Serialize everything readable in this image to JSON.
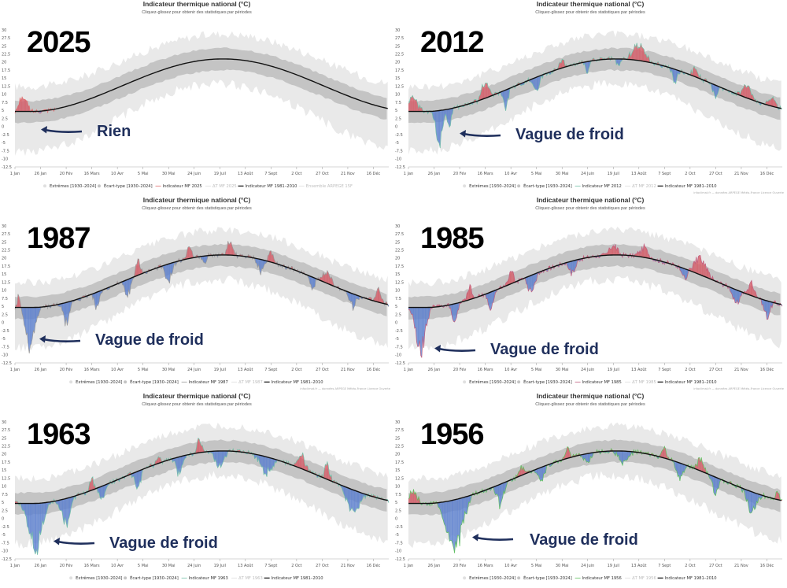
{
  "chart_data": [
    {
      "type": "area",
      "year_label": "2025",
      "title": "Indicateur thermique national (°C)",
      "subtitle": "Cliquez-glissez pour obtenir des statistiques par périodes",
      "annotation": "Rien",
      "ylim": [
        -12.5,
        30
      ],
      "y_ticks": [
        "30",
        "27.5",
        "25",
        "22.5",
        "20",
        "17.5",
        "15",
        "12.5",
        "10",
        "7.5",
        "5",
        "2.5",
        "0",
        "-2.5",
        "-5",
        "-7.5",
        "-10",
        "-12.5"
      ],
      "x_ticks": [
        "1 Jan",
        "26 Jan",
        "20 Fév",
        "16 Mars",
        "10 Avr",
        "5 Mai",
        "30 Mai",
        "24 Juin",
        "19 Juil",
        "13 Août",
        "7 Sept",
        "2 Oct",
        "27 Oct",
        "21 Nov",
        "16 Déc"
      ],
      "legend": [
        "Extrêmes [1930–2024]",
        "Écart-type [1930–2024]",
        "Indicateur MF 2025",
        "ΔT MF 2025",
        "Indicateur MF 1981–2010",
        "Ensemble ARPEGE 15F"
      ],
      "credit": "",
      "year_line_color": "#e07070",
      "cold_spells": [],
      "warm_spells": [
        [
          8,
          12,
          5
        ]
      ],
      "end_day": 40
    },
    {
      "type": "area",
      "year_label": "2012",
      "title": "Indicateur thermique national (°C)",
      "subtitle": "Cliquez-glissez pour obtenir des statistiques par périodes",
      "annotation": "Vague de froid",
      "ylim": [
        -12.5,
        30
      ],
      "y_ticks": [
        "30",
        "27.5",
        "25",
        "22.5",
        "20",
        "17.5",
        "15",
        "12.5",
        "10",
        "7.5",
        "5",
        "2.5",
        "0",
        "-2.5",
        "-5",
        "-7.5",
        "-10",
        "-12.5"
      ],
      "x_ticks": [
        "1 Jan",
        "26 Jan",
        "20 Fév",
        "16 Mars",
        "10 Avr",
        "5 Mai",
        "30 Mai",
        "24 Juin",
        "19 Juil",
        "13 Août",
        "7 Sept",
        "2 Oct",
        "27 Oct",
        "21 Nov",
        "16 Déc"
      ],
      "legend": [
        "Extrêmes [1930–2024]",
        "Écart-type [1930–2024]",
        "Indicateur MF 2012",
        "ΔT MF 2012",
        "Indicateur MF 1981–2010"
      ],
      "credit": "infoclimat.fr — données ARPEGE Météo-France Licence Ouverte",
      "year_line_color": "#74c0a8",
      "cold_spells": [
        [
          30,
          12,
          -9.5
        ],
        [
          40,
          6,
          -6
        ],
        [
          95,
          8,
          -5
        ],
        [
          125,
          10,
          -4
        ],
        [
          175,
          6,
          -3
        ],
        [
          205,
          6,
          -3
        ],
        [
          260,
          8,
          -4
        ],
        [
          300,
          8,
          -4
        ]
      ],
      "warm_spells": [
        [
          5,
          15,
          4.5
        ],
        [
          75,
          12,
          5
        ],
        [
          150,
          8,
          3
        ],
        [
          225,
          20,
          5
        ],
        [
          280,
          10,
          3
        ],
        [
          330,
          15,
          4
        ],
        [
          355,
          10,
          3
        ]
      ],
      "end_day": 366
    },
    {
      "type": "area",
      "year_label": "1987",
      "title": "Indicateur thermique national (°C)",
      "subtitle": "Cliquez-glissez pour obtenir des statistiques par périodes",
      "annotation": "Vague de froid",
      "ylim": [
        -12.5,
        30
      ],
      "y_ticks": [
        "30",
        "27.5",
        "25",
        "22.5",
        "20",
        "17.5",
        "15",
        "12.5",
        "10",
        "7.5",
        "5",
        "2.5",
        "0",
        "-2.5",
        "-5",
        "-7.5",
        "-10",
        "-12.5"
      ],
      "x_ticks": [
        "1 Jan",
        "26 Jan",
        "20 Fév",
        "16 Mars",
        "10 Avr",
        "5 Mai",
        "30 Mai",
        "24 Juin",
        "19 Juil",
        "13 Août",
        "7 Sept",
        "2 Oct",
        "27 Oct",
        "21 Nov",
        "16 Déc"
      ],
      "legend": [
        "Extrêmes [1930–2024]",
        "Écart-type [1930–2024]",
        "Indicateur MF 1987",
        "ΔT MF 1987",
        "Indicateur MF 1981–2010"
      ],
      "credit": "infoclimat.fr — données ARPEGE Météo-France Licence Ouverte",
      "year_line_color": "#999999",
      "cold_spells": [
        [
          15,
          16,
          -13
        ],
        [
          50,
          10,
          -7
        ],
        [
          80,
          8,
          -5
        ],
        [
          110,
          10,
          -5
        ],
        [
          150,
          12,
          -5
        ],
        [
          185,
          6,
          -3
        ],
        [
          240,
          10,
          -4
        ],
        [
          290,
          8,
          -4
        ],
        [
          330,
          10,
          -4
        ]
      ],
      "warm_spells": [
        [
          4,
          6,
          4
        ],
        [
          120,
          8,
          4
        ],
        [
          170,
          8,
          4
        ],
        [
          210,
          10,
          4
        ],
        [
          250,
          10,
          3
        ],
        [
          305,
          12,
          4
        ],
        [
          355,
          8,
          4
        ]
      ],
      "end_day": 366
    },
    {
      "type": "area",
      "year_label": "1985",
      "title": "Indicateur thermique national (°C)",
      "subtitle": "Cliquez-glissez pour obtenir des statistiques par périodes",
      "annotation": "Vague de froid",
      "ylim": [
        -12.5,
        30
      ],
      "y_ticks": [
        "30",
        "27.5",
        "25",
        "22.5",
        "20",
        "17.5",
        "15",
        "12.5",
        "10",
        "7.5",
        "5",
        "2.5",
        "0",
        "-2.5",
        "-5",
        "-7.5",
        "-10",
        "-12.5"
      ],
      "x_ticks": [
        "1 Jan",
        "26 Jan",
        "20 Fév",
        "16 Mars",
        "10 Avr",
        "5 Mai",
        "30 Mai",
        "24 Juin",
        "19 Juil",
        "13 Août",
        "7 Sept",
        "2 Oct",
        "27 Oct",
        "21 Nov",
        "16 Déc"
      ],
      "legend": [
        "Extrêmes [1930–2024]",
        "Écart-type [1930–2024]",
        "Indicateur MF 1985",
        "ΔT MF 1985",
        "Indicateur MF 1981–2010"
      ],
      "credit": "infoclimat.fr — données ARPEGE Météo-France Licence Ouverte",
      "year_line_color": "#c06080",
      "cold_spells": [
        [
          12,
          16,
          -13.5
        ],
        [
          45,
          8,
          -6
        ],
        [
          80,
          10,
          -5
        ],
        [
          120,
          12,
          -5
        ],
        [
          160,
          10,
          -4
        ],
        [
          270,
          8,
          -3
        ],
        [
          320,
          10,
          -5
        ],
        [
          350,
          10,
          -5
        ]
      ],
      "warm_spells": [
        [
          60,
          8,
          4
        ],
        [
          100,
          8,
          4
        ],
        [
          200,
          12,
          3
        ],
        [
          230,
          15,
          3
        ],
        [
          285,
          20,
          5
        ],
        [
          335,
          10,
          4
        ]
      ],
      "end_day": 366
    },
    {
      "type": "area",
      "year_label": "1963",
      "title": "Indicateur thermique national (°C)",
      "subtitle": "Cliquez-glissez pour obtenir des statistiques par périodes",
      "annotation": "Vague de froid",
      "ylim": [
        -12.5,
        30
      ],
      "y_ticks": [
        "30",
        "27.5",
        "25",
        "22.5",
        "20",
        "17.5",
        "15",
        "12.5",
        "10",
        "7.5",
        "5",
        "2.5",
        "0",
        "-2.5",
        "-5",
        "-7.5",
        "-10",
        "-12.5"
      ],
      "x_ticks": [
        "1 Jan",
        "26 Jan",
        "20 Fév",
        "16 Mars",
        "10 Avr",
        "5 Mai",
        "30 Mai",
        "24 Juin",
        "19 Juil",
        "13 Août",
        "7 Sept",
        "2 Oct",
        "27 Oct",
        "21 Nov",
        "16 Déc"
      ],
      "legend": [
        "Extrêmes [1930–2024]",
        "Écart-type [1930–2024]",
        "Indicateur MF 1963",
        "ΔT MF 1963",
        "Indicateur MF 1981–2010"
      ],
      "credit": "",
      "year_line_color": "#74c0a8",
      "cold_spells": [
        [
          20,
          22,
          -14
        ],
        [
          50,
          14,
          -8
        ],
        [
          85,
          8,
          -5
        ],
        [
          120,
          10,
          -5
        ],
        [
          160,
          10,
          -5
        ],
        [
          200,
          15,
          -5
        ],
        [
          245,
          20,
          -5
        ],
        [
          330,
          20,
          -8
        ]
      ],
      "warm_spells": [
        [
          75,
          6,
          4
        ],
        [
          140,
          6,
          3
        ],
        [
          180,
          8,
          4
        ],
        [
          280,
          12,
          5
        ],
        [
          305,
          8,
          5
        ]
      ],
      "end_day": 366
    },
    {
      "type": "area",
      "year_label": "1956",
      "title": "Indicateur thermique national (°C)",
      "subtitle": "Cliquez-glissez pour obtenir des statistiques par périodes",
      "annotation": "Vague de froid",
      "ylim": [
        -12.5,
        30
      ],
      "y_ticks": [
        "30",
        "27.5",
        "25",
        "22.5",
        "20",
        "17.5",
        "15",
        "12.5",
        "10",
        "7.5",
        "5",
        "2.5",
        "0",
        "-2.5",
        "-5",
        "-7.5",
        "-10",
        "-12.5"
      ],
      "x_ticks": [
        "1 Jan",
        "26 Jan",
        "20 Fév",
        "16 Mars",
        "10 Avr",
        "5 Mai",
        "30 Mai",
        "24 Juin",
        "19 Juil",
        "13 Août",
        "7 Sept",
        "2 Oct",
        "27 Oct",
        "21 Nov",
        "16 Déc"
      ],
      "legend": [
        "Extrêmes [1930–2024]",
        "Écart-type [1930–2024]",
        "Indicateur MF 1956",
        "ΔT MF 1956",
        "Indicateur MF 1981–2010"
      ],
      "credit": "",
      "year_line_color": "#60c060",
      "cold_spells": [
        [
          45,
          26,
          -16
        ],
        [
          90,
          12,
          -6
        ],
        [
          130,
          10,
          -4
        ],
        [
          175,
          10,
          -3
        ],
        [
          210,
          15,
          -4
        ],
        [
          265,
          12,
          -5
        ],
        [
          300,
          10,
          -5
        ],
        [
          335,
          15,
          -6
        ]
      ],
      "warm_spells": [
        [
          5,
          12,
          4
        ],
        [
          110,
          8,
          3
        ],
        [
          155,
          8,
          3
        ],
        [
          250,
          8,
          3
        ],
        [
          285,
          10,
          4
        ],
        [
          360,
          6,
          3
        ]
      ],
      "end_day": 366
    }
  ]
}
